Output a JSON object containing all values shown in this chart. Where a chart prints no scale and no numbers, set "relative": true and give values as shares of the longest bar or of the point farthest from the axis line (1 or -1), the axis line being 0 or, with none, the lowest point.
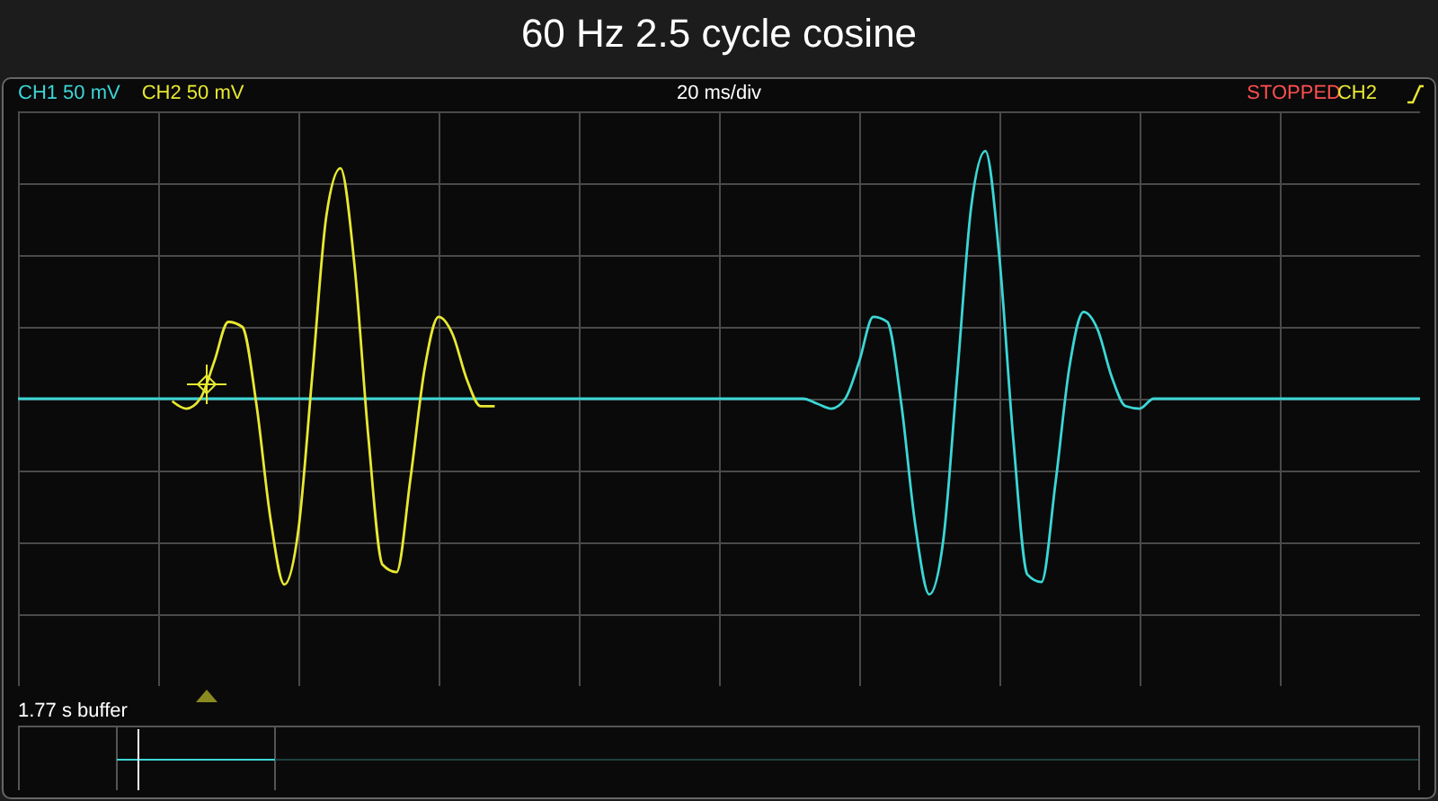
{
  "chart_data": {
    "type": "line",
    "title": "60 Hz 2.5 cycle cosine",
    "relative": true,
    "grid": true,
    "legend": "top left",
    "line_style": "solid",
    "marker": "none",
    "annotations": [
      "20 ms/div",
      "STOPPED",
      "CH2",
      "1.77 s buffer"
    ],
    "categories": [
      null,
      null,
      null,
      null,
      null,
      null,
      null,
      null,
      null,
      null,
      null,
      null,
      null,
      null,
      null,
      null,
      null,
      null,
      null,
      null,
      null,
      null,
      null,
      null,
      null,
      null,
      null,
      null,
      null,
      null,
      null,
      null,
      null,
      null,
      null,
      null,
      null,
      null,
      null,
      null,
      null,
      null,
      null,
      null,
      null,
      null,
      null,
      null,
      null,
      null,
      null,
      null,
      null,
      null,
      null,
      null,
      null,
      null,
      null,
      null,
      null,
      null,
      null,
      null,
      null,
      null,
      null,
      null,
      null,
      null,
      null,
      null,
      null,
      null,
      null,
      null,
      null,
      null,
      null,
      null,
      null,
      null,
      null,
      null,
      null,
      null,
      null,
      null,
      null,
      null,
      null,
      null,
      null,
      null,
      null,
      null,
      null,
      null,
      null,
      null,
      null
    ],
    "series": [
      {
        "name": "CH1 50 mV",
        "color": "#3cd6d6",
        "values": [
          0,
          0,
          0,
          0,
          0,
          0,
          0,
          0,
          0,
          0,
          0,
          0,
          0,
          0,
          0,
          0,
          0,
          0,
          0,
          0,
          0,
          0,
          0,
          0,
          0,
          0,
          0,
          0,
          0,
          0,
          0,
          0,
          0,
          0,
          0,
          0,
          0,
          0,
          0,
          0,
          0,
          0,
          0,
          0,
          0,
          0,
          0,
          0,
          0,
          0,
          0,
          0,
          0,
          0,
          0,
          0,
          0,
          -0.02,
          -0.04,
          0,
          0.15,
          0.33,
          0.31,
          -0.02,
          -0.51,
          -0.79,
          -0.57,
          0.1,
          0.78,
          1,
          0.57,
          -0.17,
          -0.71,
          -0.74,
          -0.34,
          0.13,
          0.35,
          0.28,
          0.09,
          -0.03,
          -0.04,
          0,
          0,
          0,
          0,
          0,
          0,
          0,
          0,
          0,
          0,
          0,
          0,
          0,
          0,
          0,
          0,
          0,
          0,
          0,
          0
        ]
      },
      {
        "name": "CH2 50 mV",
        "color": "#e8e832",
        "values": [
          null,
          null,
          null,
          null,
          null,
          null,
          null,
          null,
          null,
          null,
          null,
          -0.01,
          -0.04,
          0,
          0.15,
          0.31,
          0.29,
          -0.02,
          -0.48,
          -0.75,
          -0.53,
          0.1,
          0.74,
          0.93,
          0.54,
          -0.16,
          -0.67,
          -0.7,
          -0.32,
          0.12,
          0.33,
          0.26,
          0.08,
          -0.03,
          -0.03,
          null,
          null,
          null,
          null,
          null,
          null,
          null,
          null,
          null,
          null,
          null,
          null,
          null,
          null,
          null,
          null,
          null,
          null,
          null,
          null,
          null,
          null,
          null,
          null,
          null,
          null,
          null,
          null,
          null,
          null,
          null,
          null,
          null,
          null,
          null,
          null,
          null,
          null,
          null,
          null,
          null,
          null,
          null,
          null,
          null,
          null,
          null,
          null,
          null,
          null,
          null,
          null,
          null,
          null,
          null,
          null,
          null,
          null,
          null,
          null,
          null,
          null,
          null,
          null,
          null,
          null
        ]
      }
    ]
  }
}
